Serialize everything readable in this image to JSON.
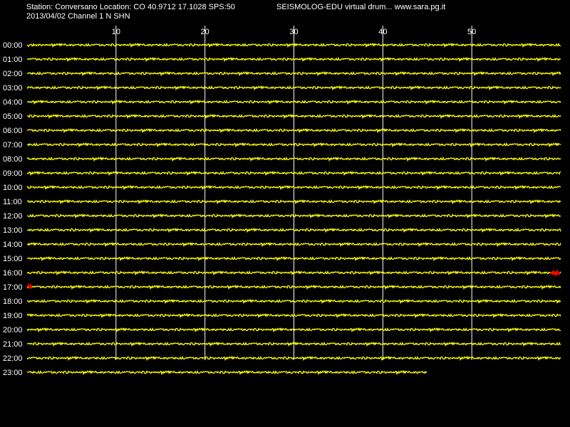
{
  "header": {
    "station_line": "Station: Conversano Location: CO 40.9712 17.1028 SPS:50",
    "brand_line": "SEISMOLOG-EDU virtual drum... www.sara.pg.it",
    "date_line": "2013/04/02  Channel 1 N SHN"
  },
  "colors": {
    "background": "#000000",
    "trace": "#ffff00",
    "event": "#ff0000",
    "grid": "#ffffff",
    "text": "#ffffff"
  },
  "chart_data": {
    "type": "line",
    "title": "",
    "xlabel": "",
    "ylabel": "",
    "x_unit": "minutes",
    "xlim": [
      0,
      60
    ],
    "x_ticks": [
      10,
      20,
      30,
      40,
      50
    ],
    "grid": true,
    "hours": [
      "00:00",
      "01:00",
      "02:00",
      "03:00",
      "04:00",
      "05:00",
      "06:00",
      "07:00",
      "08:00",
      "09:00",
      "10:00",
      "11:00",
      "12:00",
      "13:00",
      "14:00",
      "15:00",
      "16:00",
      "17:00",
      "18:00",
      "19:00",
      "20:00",
      "21:00",
      "22:00",
      "23:00"
    ],
    "last_trace_end_minute": 45,
    "events": [
      {
        "hour": "16:00",
        "minute_start": 58.8,
        "minute_end": 60
      },
      {
        "hour": "17:00",
        "minute_start": 0,
        "minute_end": 0.5
      }
    ]
  }
}
